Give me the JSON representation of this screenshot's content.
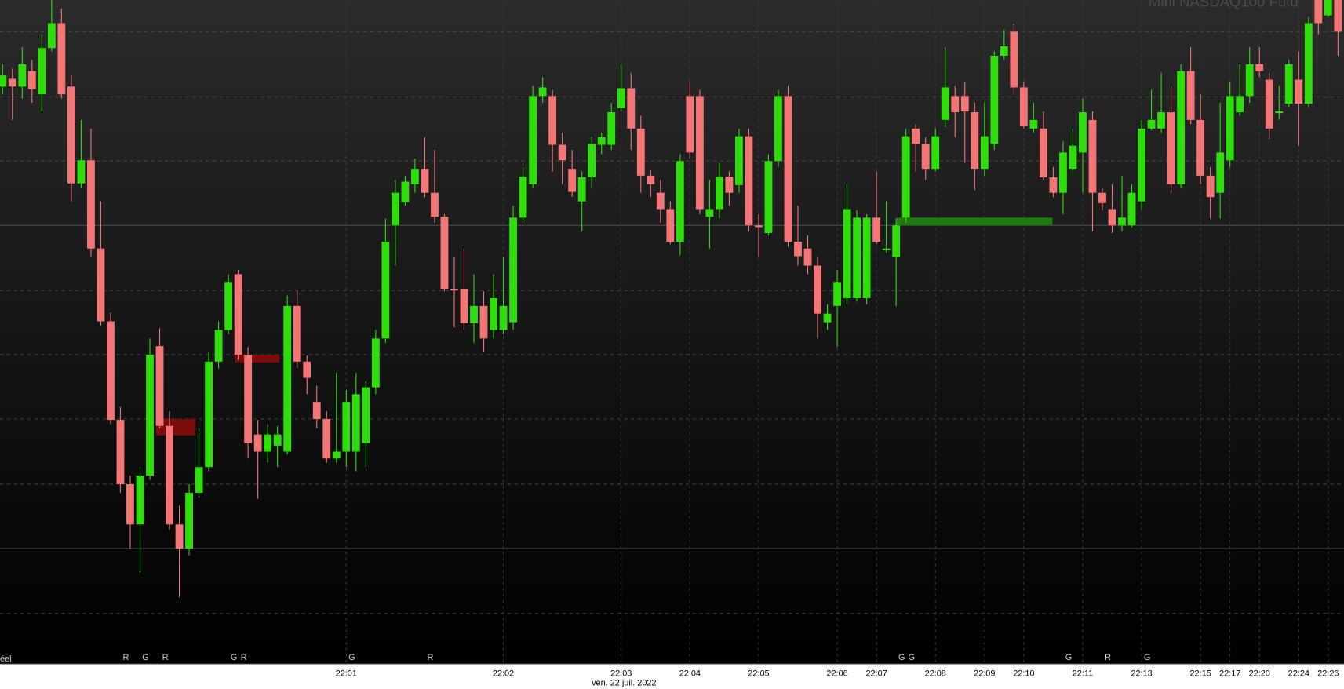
{
  "chart_data": {
    "type": "candlestick",
    "title": "Mini NASDAQ100 Futu",
    "corner_label": "éel",
    "x_label": "ven. 22 juil. 2022",
    "up_color": "#2fdc0c",
    "down_color": "#f27676",
    "ylim": [
      12425,
      13200
    ],
    "categories": [
      null,
      null,
      null,
      null,
      null,
      null,
      null,
      null,
      null,
      null,
      null,
      null,
      null,
      null,
      null,
      null,
      null,
      null,
      null,
      null,
      null,
      null,
      null,
      null,
      null,
      null,
      null,
      null,
      null,
      null,
      null,
      null,
      null,
      null,
      null,
      "22:01",
      null,
      null,
      null,
      null,
      null,
      null,
      null,
      null,
      null,
      null,
      null,
      null,
      null,
      null,
      null,
      "22:02",
      null,
      null,
      null,
      null,
      null,
      null,
      null,
      null,
      null,
      null,
      null,
      "22:03",
      null,
      null,
      null,
      null,
      null,
      null,
      "22:04",
      null,
      null,
      null,
      null,
      null,
      null,
      "22:05",
      null,
      null,
      null,
      null,
      null,
      null,
      null,
      "22:06",
      null,
      null,
      null,
      "22:07",
      null,
      null,
      null,
      null,
      null,
      "22:08",
      null,
      null,
      null,
      null,
      "22:09",
      null,
      null,
      null,
      "22:10",
      null,
      null,
      null,
      null,
      null,
      "22:11",
      null,
      null,
      null,
      null,
      null,
      "22:13",
      null,
      null,
      null,
      null,
      null,
      "22:15",
      null,
      null,
      "22:17",
      null,
      null,
      "22:20",
      null,
      null,
      null,
      "22:24",
      null,
      null,
      "22:26",
      null
    ],
    "markers": [
      null,
      null,
      null,
      null,
      null,
      null,
      null,
      null,
      null,
      null,
      null,
      null,
      null,
      "R",
      null,
      "G",
      null,
      "R",
      null,
      null,
      null,
      null,
      null,
      null,
      "G",
      "R",
      null,
      null,
      null,
      null,
      null,
      null,
      null,
      null,
      null,
      null,
      "G",
      null,
      null,
      null,
      null,
      null,
      null,
      null,
      "R",
      null,
      null,
      null,
      null,
      null,
      null,
      null,
      null,
      null,
      null,
      null,
      null,
      null,
      null,
      null,
      null,
      null,
      null,
      null,
      null,
      null,
      null,
      null,
      null,
      null,
      null,
      null,
      null,
      null,
      null,
      null,
      null,
      null,
      null,
      null,
      null,
      null,
      null,
      null,
      null,
      null,
      null,
      null,
      null,
      null,
      null,
      null,
      "G",
      "G",
      null,
      null,
      null,
      null,
      null,
      null,
      null,
      null,
      null,
      null,
      null,
      null,
      null,
      null,
      null,
      "G",
      null,
      null,
      null,
      "R",
      null,
      null,
      null,
      "G",
      null,
      null,
      null,
      null,
      null,
      null,
      null,
      null,
      null,
      null,
      null,
      null,
      null,
      null,
      null,
      null,
      null,
      null,
      null
    ],
    "open": [
      13099,
      13108,
      13099,
      13117,
      13090,
      13144,
      13173,
      13099,
      12986,
      13013,
      12910,
      12825,
      12710,
      12635,
      12588,
      12645,
      12796,
      12703,
      12588,
      12560,
      12625,
      12655,
      12778,
      12815,
      12880,
      12786,
      12693,
      12673,
      12680,
      12673,
      12843,
      12778,
      12731,
      12711,
      12665,
      12673,
      12673,
      12683,
      12748,
      12805,
      12937,
      12964,
      12985,
      13003,
      12975,
      12947,
      12863,
      12863,
      12823,
      12843,
      12815,
      12815,
      12824,
      12946,
      12985,
      13088,
      13088,
      13031,
      13003,
      12965,
      12993,
      13031,
      13031,
      13074,
      13097,
      13050,
      12995,
      12975,
      12956,
      12918,
      13088,
      13088,
      12947,
      12956,
      12994,
      12984,
      13041,
      12937,
      12928,
      13012,
      13088,
      12918,
      12910,
      12890,
      12824,
      12843,
      12852,
      12852,
      12852,
      12946,
      12908,
      12900,
      12946,
      13050,
      13032,
      13003,
      13060,
      13088,
      13088,
      13069,
      13003,
      13032,
      13135,
      13163,
      13098,
      13050,
      13050,
      12993,
      12975,
      13003,
      13022,
      13060,
      12975,
      12956,
      12937,
      12937,
      12965,
      13050,
      13050,
      13069,
      12985,
      13117,
      13060,
      12995,
      12975,
      13013,
      13069,
      13088,
      13125,
      13107,
      13068,
      13079,
      13107,
      13079,
      13200,
      13182,
      13200
    ],
    "high": [
      13125,
      13120,
      13145,
      13130,
      13160,
      13200,
      13190,
      13112,
      13060,
      13050,
      12965,
      12835,
      12725,
      12645,
      12655,
      12805,
      12817,
      12720,
      12610,
      12635,
      12700,
      12790,
      12825,
      12880,
      12885,
      12795,
      12710,
      12705,
      12703,
      12855,
      12860,
      12785,
      12750,
      12720,
      12765,
      12745,
      12765,
      12755,
      12815,
      12945,
      12990,
      12995,
      13015,
      13040,
      13025,
      12950,
      12900,
      12910,
      12880,
      12860,
      12880,
      12900,
      12960,
      13005,
      13100,
      13110,
      13095,
      13045,
      13025,
      13000,
      13040,
      13045,
      13080,
      13125,
      13115,
      13065,
      13002,
      12990,
      12965,
      13020,
      13105,
      13095,
      12990,
      13010,
      13000,
      13050,
      13050,
      12950,
      13020,
      13095,
      13100,
      12960,
      12925,
      12900,
      12845,
      12885,
      12985,
      12955,
      12950,
      13000,
      12965,
      12945,
      13050,
      13055,
      13040,
      13050,
      13145,
      13100,
      13105,
      13080,
      13080,
      13140,
      13165,
      13172,
      13105,
      13080,
      13070,
      13005,
      13035,
      13050,
      13085,
      13070,
      12980,
      12985,
      12995,
      12985,
      13060,
      13095,
      13115,
      13100,
      13125,
      13145,
      13090,
      13005,
      13080,
      13105,
      13125,
      13145,
      13145,
      13115,
      13100,
      13130,
      13140,
      13180,
      13200,
      13200,
      13200
    ],
    "low": [
      13090,
      13060,
      13085,
      13080,
      13070,
      13140,
      13085,
      12965,
      12980,
      12900,
      12820,
      12705,
      12625,
      12560,
      12532,
      12640,
      12700,
      12582,
      12503,
      12552,
      12620,
      12650,
      12770,
      12810,
      12780,
      12665,
      12618,
      12660,
      12655,
      12670,
      12770,
      12740,
      12700,
      12660,
      12660,
      12655,
      12650,
      12655,
      12740,
      12800,
      12890,
      12960,
      12975,
      12970,
      12940,
      12860,
      12818,
      12815,
      12800,
      12790,
      12805,
      12810,
      12815,
      12940,
      12980,
      13080,
      13000,
      12985,
      12970,
      12930,
      12980,
      13020,
      13025,
      13070,
      13025,
      12975,
      12970,
      12940,
      12915,
      12902,
      13015,
      12950,
      12910,
      12945,
      12960,
      12975,
      12930,
      12900,
      12925,
      13005,
      12912,
      12890,
      12880,
      12805,
      12815,
      12795,
      12845,
      12848,
      12845,
      12915,
      12905,
      12843,
      12940,
      13000,
      12990,
      13000,
      13052,
      13040,
      13010,
      12978,
      12995,
      13025,
      13130,
      13090,
      13050,
      13045,
      12990,
      12970,
      12950,
      12995,
      12975,
      12930,
      12955,
      12928,
      12930,
      12935,
      12955,
      13048,
      13045,
      12975,
      12980,
      13055,
      12985,
      12945,
      12945,
      13005,
      13065,
      13080,
      13110,
      13038,
      13060,
      13075,
      13030,
      13075,
      13160,
      13180,
      13135
    ],
    "close": [
      13112,
      13099,
      13125,
      13096,
      13144,
      13173,
      13090,
      12986,
      13013,
      12910,
      12825,
      12710,
      12635,
      12588,
      12645,
      12786,
      12703,
      12588,
      12560,
      12625,
      12655,
      12778,
      12815,
      12871,
      12786,
      12683,
      12673,
      12693,
      12693,
      12843,
      12778,
      12759,
      12711,
      12665,
      12673,
      12731,
      12740,
      12748,
      12805,
      12918,
      12975,
      12988,
      13003,
      12975,
      12947,
      12863,
      12861,
      12823,
      12843,
      12805,
      12852,
      12843,
      12946,
      12994,
      13088,
      13098,
      13031,
      13013,
      12976,
      12993,
      13032,
      13040,
      13069,
      13097,
      13050,
      12995,
      12985,
      12956,
      12918,
      13012,
      13022,
      12956,
      12956,
      12994,
      12975,
      13041,
      12937,
      12935,
      13012,
      13088,
      12918,
      12901,
      12890,
      12834,
      12834,
      12871,
      12956,
      12946,
      12946,
      12918,
      12910,
      12937,
      13041,
      13032,
      13003,
      13041,
      13098,
      13069,
      13070,
      13003,
      13041,
      13135,
      13146,
      13098,
      13053,
      13060,
      12993,
      12975,
      13022,
      13030,
      13069,
      12975,
      12963,
      12937,
      12946,
      12975,
      13050,
      13060,
      13069,
      12985,
      13117,
      13060,
      12995,
      12970,
      13022,
      13088,
      13088,
      13125,
      13117,
      13050,
      13070,
      13125,
      13079,
      13173,
      13173,
      13200,
      13163
    ]
  }
}
